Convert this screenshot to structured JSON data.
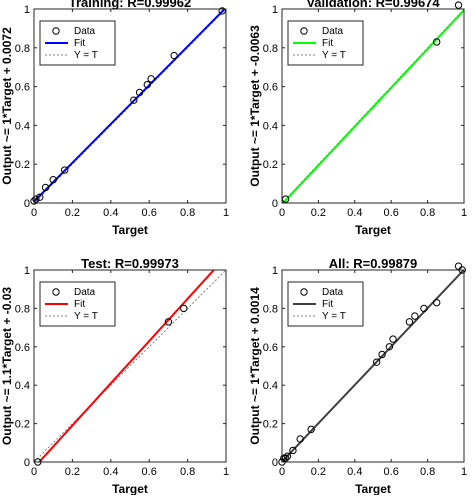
{
  "chart_data": [
    {
      "type": "scatter",
      "title": "Training: R=0.99962",
      "xlabel": "Target",
      "ylabel": "Output ~= 1*Target + 0.0072",
      "xlim": [
        0,
        1
      ],
      "ylim": [
        0,
        1
      ],
      "xticks": [
        "0",
        "0.2",
        "0.4",
        "0.6",
        "0.8",
        "1"
      ],
      "yticks": [
        "0",
        "0.2",
        "0.4",
        "0.6",
        "0.8",
        "1"
      ],
      "legend": [
        "Data",
        "Fit",
        "Y = T"
      ],
      "legend_location": "top-left",
      "fit_color": "#0000ff",
      "fit": {
        "slope": 1,
        "intercept": 0.0072
      },
      "points": [
        [
          0.0,
          0.01
        ],
        [
          0.01,
          0.02
        ],
        [
          0.03,
          0.03
        ],
        [
          0.06,
          0.08
        ],
        [
          0.1,
          0.12
        ],
        [
          0.16,
          0.17
        ],
        [
          0.52,
          0.53
        ],
        [
          0.55,
          0.57
        ],
        [
          0.59,
          0.61
        ],
        [
          0.61,
          0.64
        ],
        [
          0.73,
          0.76
        ],
        [
          0.98,
          0.99
        ]
      ]
    },
    {
      "type": "scatter",
      "title": "Validation: R=0.99674",
      "xlabel": "Target",
      "ylabel": "Output ~= 1*Target + -0.0063",
      "xlim": [
        0,
        1
      ],
      "ylim": [
        0,
        1
      ],
      "xticks": [
        "0",
        "0.2",
        "0.4",
        "0.6",
        "0.8",
        "1"
      ],
      "yticks": [
        "0",
        "0.2",
        "0.4",
        "0.6",
        "0.8",
        "1"
      ],
      "legend": [
        "Data",
        "Fit",
        "Y = T"
      ],
      "legend_location": "top-left",
      "fit_color": "#00ff00",
      "fit": {
        "slope": 1,
        "intercept": -0.0063
      },
      "points": [
        [
          0.02,
          0.02
        ],
        [
          0.85,
          0.83
        ],
        [
          0.97,
          1.02
        ]
      ]
    },
    {
      "type": "scatter",
      "title": "Test: R=0.99973",
      "xlabel": "Target",
      "ylabel": "Output ~= 1.1*Target + -0.03",
      "xlim": [
        0,
        1
      ],
      "ylim": [
        0,
        1
      ],
      "xticks": [
        "0",
        "0.2",
        "0.4",
        "0.6",
        "0.8",
        "1"
      ],
      "yticks": [
        "0",
        "0.2",
        "0.4",
        "0.6",
        "0.8",
        "1"
      ],
      "legend": [
        "Data",
        "Fit",
        "Y = T"
      ],
      "legend_location": "top-left",
      "fit_color": "#ff0000",
      "fit": {
        "slope": 1.1,
        "intercept": -0.03
      },
      "points": [
        [
          0.02,
          0.0
        ],
        [
          0.7,
          0.73
        ],
        [
          0.78,
          0.8
        ]
      ]
    },
    {
      "type": "scatter",
      "title": "All: R=0.99879",
      "xlabel": "Target",
      "ylabel": "Output ~= 1*Target + 0.0014",
      "xlim": [
        0,
        1
      ],
      "ylim": [
        0,
        1
      ],
      "xticks": [
        "0",
        "0.2",
        "0.4",
        "0.6",
        "0.8",
        "1"
      ],
      "yticks": [
        "0",
        "0.2",
        "0.4",
        "0.6",
        "0.8",
        "1"
      ],
      "legend": [
        "Data",
        "Fit",
        "Y = T"
      ],
      "legend_location": "top-left",
      "fit_color": "#404040",
      "fit": {
        "slope": 1,
        "intercept": 0.0014
      },
      "points": [
        [
          0.0,
          0.0
        ],
        [
          0.01,
          0.02
        ],
        [
          0.02,
          0.02
        ],
        [
          0.03,
          0.03
        ],
        [
          0.06,
          0.06
        ],
        [
          0.1,
          0.12
        ],
        [
          0.16,
          0.17
        ],
        [
          0.52,
          0.52
        ],
        [
          0.55,
          0.56
        ],
        [
          0.59,
          0.6
        ],
        [
          0.61,
          0.64
        ],
        [
          0.7,
          0.73
        ],
        [
          0.73,
          0.76
        ],
        [
          0.78,
          0.8
        ],
        [
          0.85,
          0.83
        ],
        [
          0.97,
          1.02
        ],
        [
          0.99,
          1.0
        ]
      ]
    }
  ]
}
